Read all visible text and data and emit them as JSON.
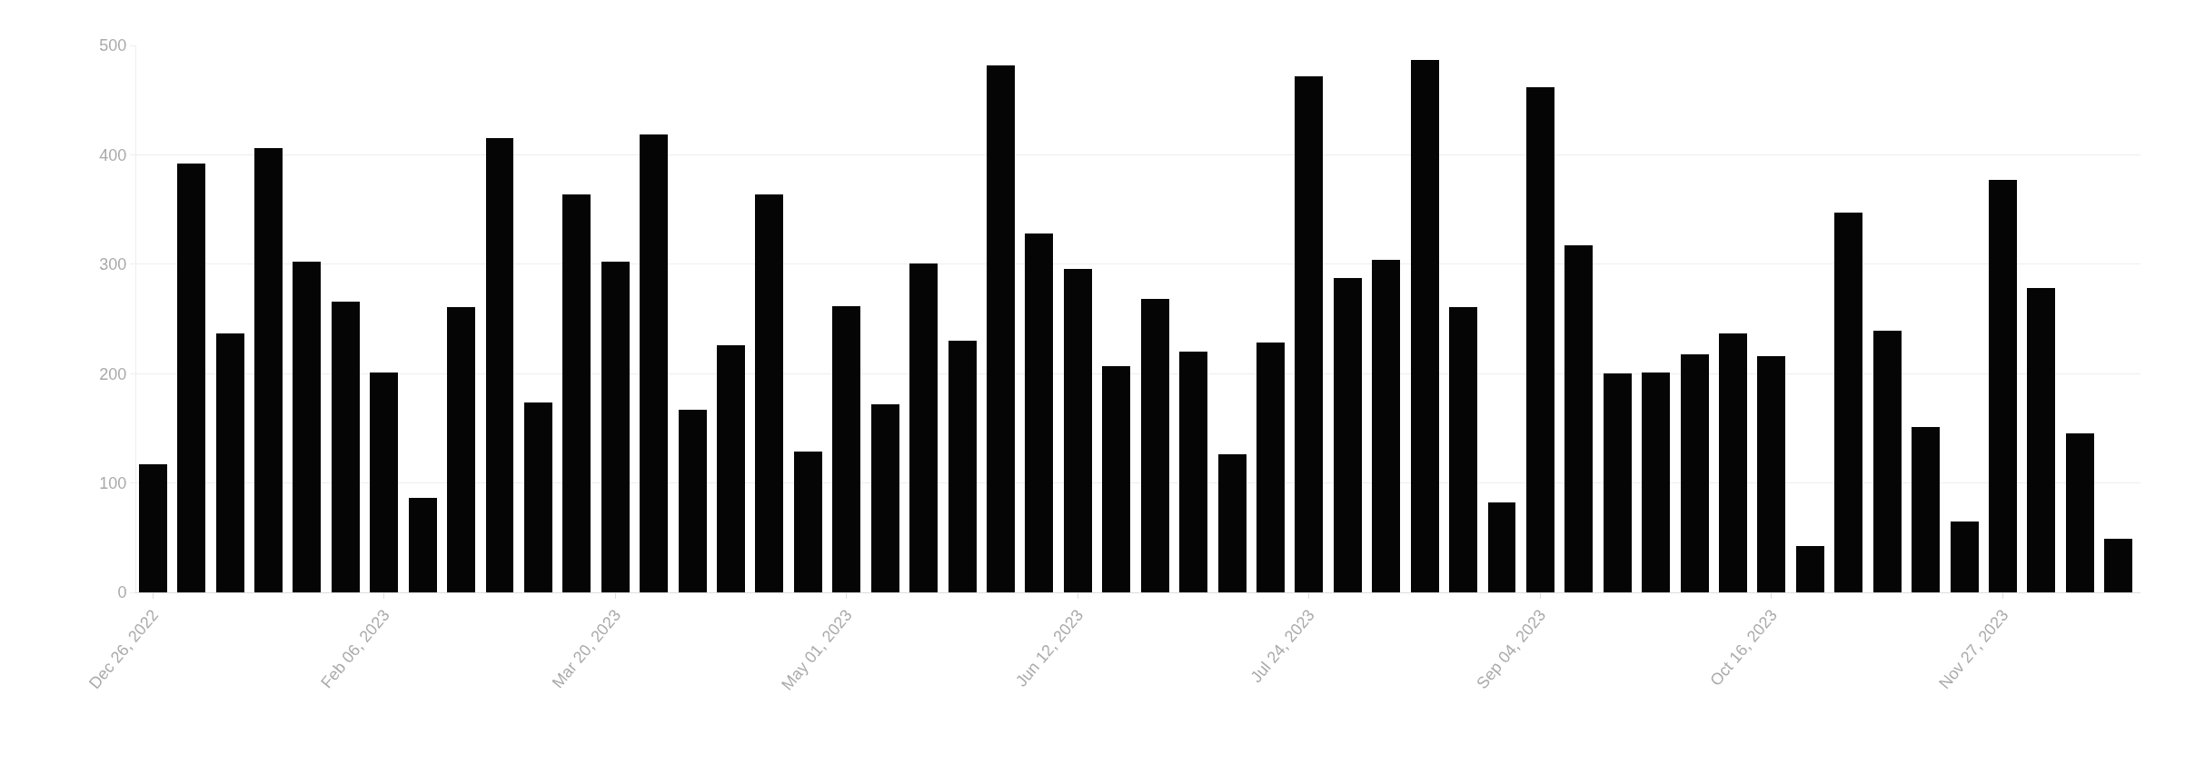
{
  "chart_data": {
    "type": "bar",
    "color": "#050505",
    "x": [
      "2022-12-26",
      "2023-01-02",
      "2023-01-09",
      "2023-01-16",
      "2023-01-23",
      "2023-01-30",
      "2023-02-06",
      "2023-02-13",
      "2023-02-20",
      "2023-02-27",
      "2023-03-06",
      "2023-03-13",
      "2023-03-20",
      "2023-03-27",
      "2023-04-03",
      "2023-04-10",
      "2023-04-17",
      "2023-04-24",
      "2023-05-01",
      "2023-05-08",
      "2023-05-15",
      "2023-05-22",
      "2023-05-29",
      "2023-06-05",
      "2023-06-12",
      "2023-06-19",
      "2023-06-26",
      "2023-07-03",
      "2023-07-10",
      "2023-07-17",
      "2023-07-24",
      "2023-07-31",
      "2023-08-07",
      "2023-08-14",
      "2023-08-21",
      "2023-08-28",
      "2023-09-04",
      "2023-09-11",
      "2023-09-18",
      "2023-09-25",
      "2023-10-02",
      "2023-10-09",
      "2023-10-16",
      "2023-10-23",
      "2023-10-30",
      "2023-11-06",
      "2023-11-13",
      "2023-11-20",
      "2023-11-27",
      "2023-12-04",
      "2023-12-11",
      "2023-12-18"
    ],
    "values": [
      117,
      392,
      237,
      406,
      302,
      266,
      201,
      86,
      261,
      415,
      174,
      364,
      302,
      419,
      167,
      226,
      364,
      129,
      262,
      172,
      301,
      230,
      482,
      328,
      296,
      207,
      268,
      220,
      126,
      228,
      472,
      287,
      304,
      487,
      261,
      82,
      462,
      317,
      200,
      201,
      218,
      237,
      216,
      42,
      347,
      239,
      151,
      65,
      377,
      278,
      145,
      49
    ],
    "xlim": [
      "2022-12-23",
      "2023-12-22"
    ],
    "xticks": [
      {
        "value": "2022-12-26",
        "label": "Dec 26, 2022"
      },
      {
        "value": "2023-02-06",
        "label": "Feb 06, 2023"
      },
      {
        "value": "2023-03-20",
        "label": "Mar 20, 2023"
      },
      {
        "value": "2023-05-01",
        "label": "May 01, 2023"
      },
      {
        "value": "2023-06-12",
        "label": "Jun 12, 2023"
      },
      {
        "value": "2023-07-24",
        "label": "Jul 24, 2023"
      },
      {
        "value": "2023-09-04",
        "label": "Sep 04, 2023"
      },
      {
        "value": "2023-10-16",
        "label": "Oct 16, 2023"
      },
      {
        "value": "2023-11-27",
        "label": "Nov 27, 2023"
      }
    ],
    "ylim": [
      0,
      500
    ],
    "yticks": [
      0,
      100,
      200,
      300,
      400,
      500
    ],
    "grid": "y",
    "legend": false
  }
}
